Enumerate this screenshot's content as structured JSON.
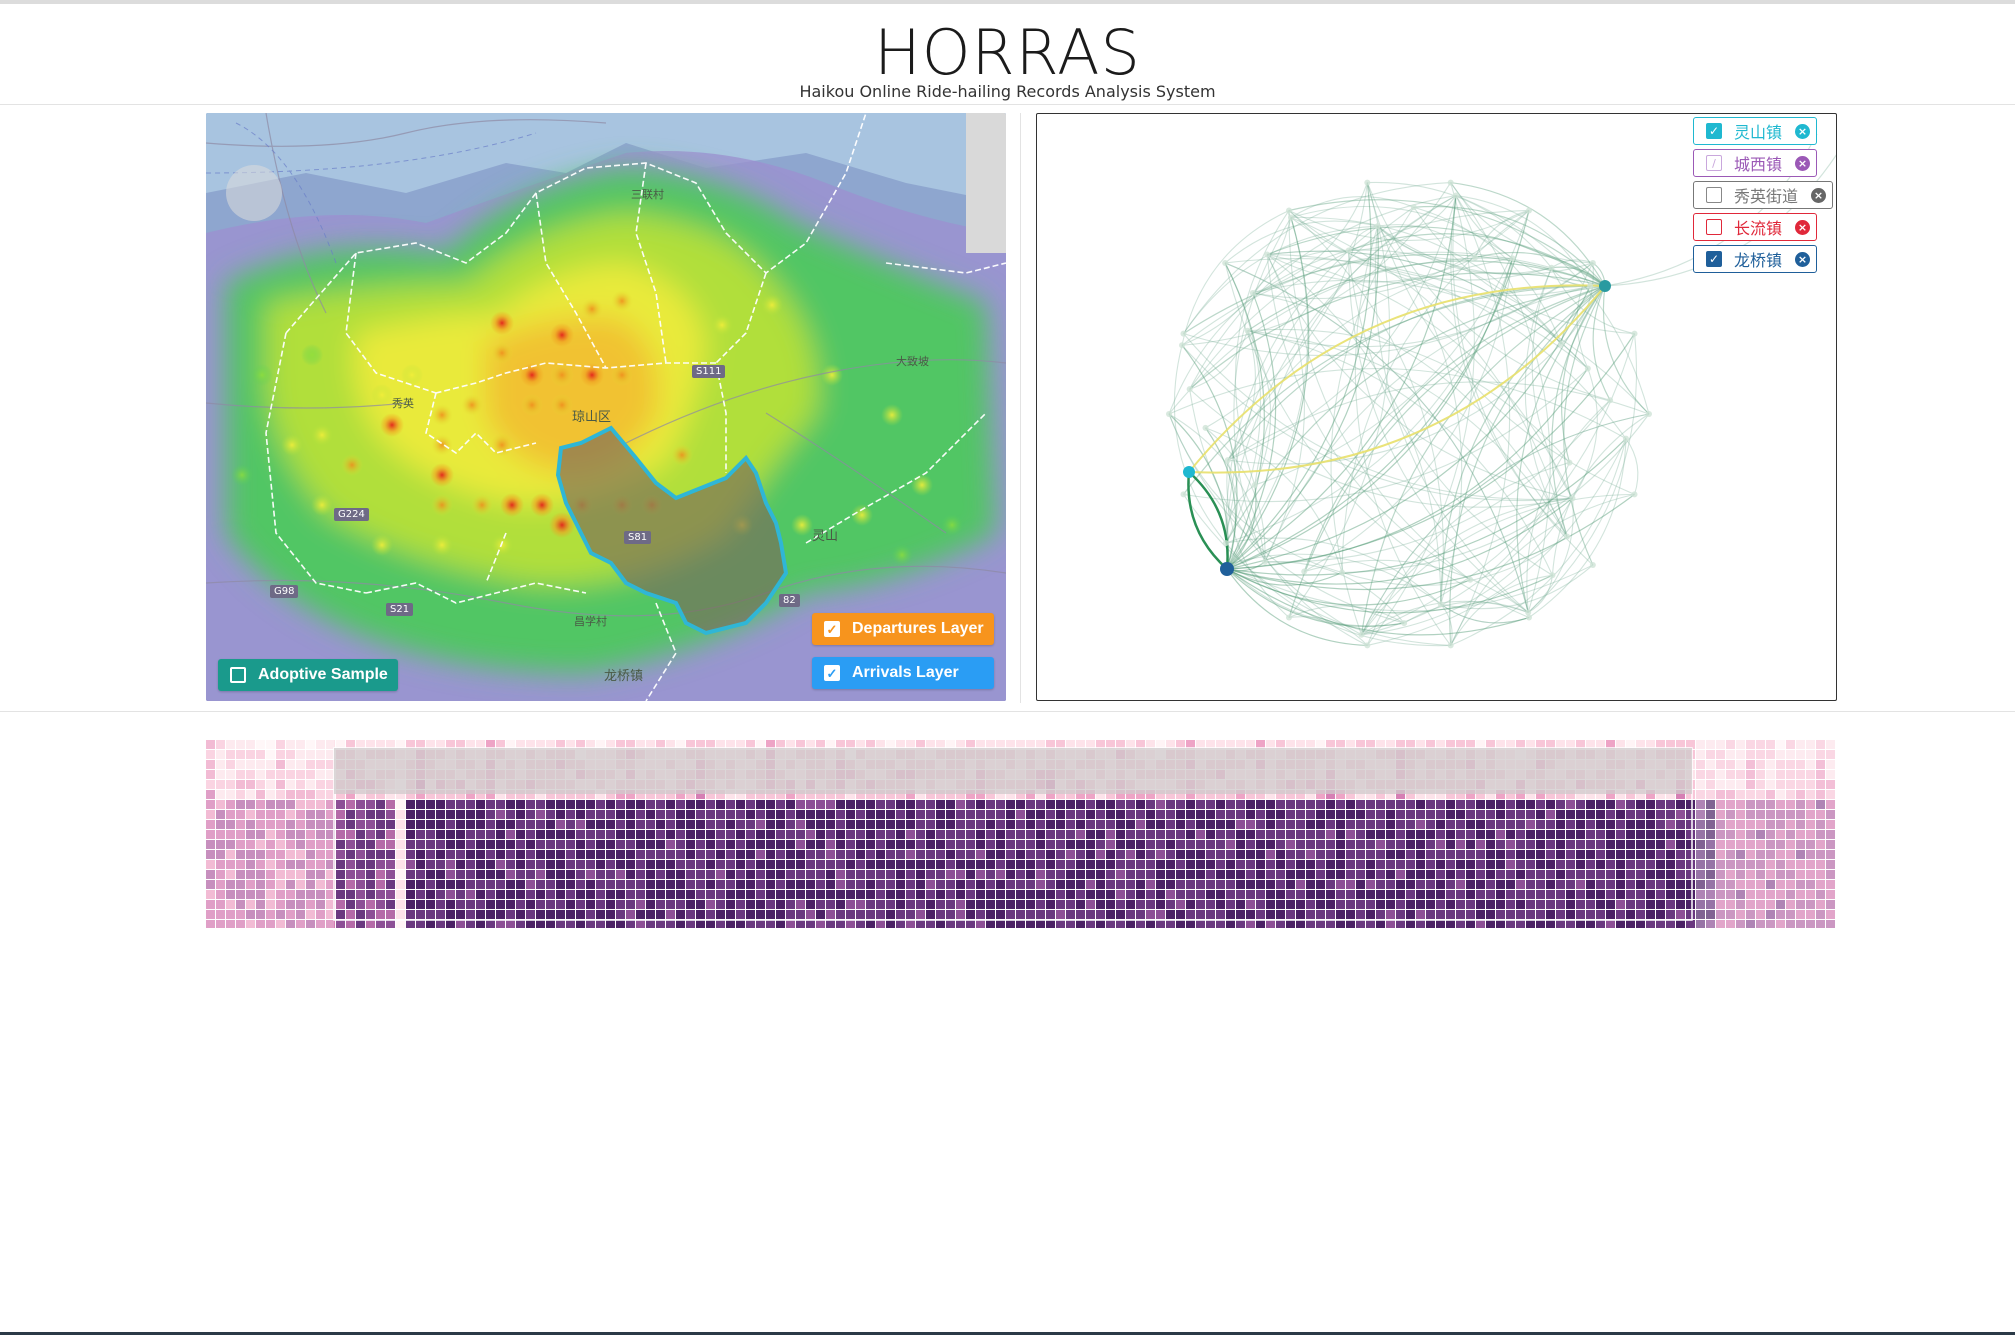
{
  "header": {
    "title": "HORRAS",
    "subtitle": "Haikou Online Ride-hailing Records Analysis System"
  },
  "map": {
    "place_labels": [
      "三联村",
      "龙桥镇",
      "灵山",
      "大致坡",
      "琼山区",
      "昌学村",
      "秀英"
    ],
    "road_badges": [
      "G224",
      "G98",
      "S21",
      "S111",
      "S81",
      "82"
    ],
    "buttons": {
      "adoptive_sample": {
        "label": "Adoptive Sample",
        "checked": false,
        "color": "#1a9a8c"
      },
      "departures_layer": {
        "label": "Departures Layer",
        "checked": true,
        "color": "#f7941d"
      },
      "arrivals_layer": {
        "label": "Arrivals Layer",
        "checked": true,
        "color": "#2a9df4"
      }
    },
    "highlight_color": "#2fb6d6"
  },
  "graph": {
    "legend": [
      {
        "label": "灵山镇",
        "checked": true,
        "color": "#1fb8d0",
        "style": "solid"
      },
      {
        "label": "城西镇",
        "checked": false,
        "color": "#9b59b6",
        "style": "partial"
      },
      {
        "label": "秀英街道",
        "checked": false,
        "color": "#666666",
        "style": "none"
      },
      {
        "label": "长流镇",
        "checked": false,
        "color": "#e0283a",
        "style": "none"
      },
      {
        "label": "龙桥镇",
        "checked": true,
        "color": "#1f5f9a",
        "style": "solid"
      }
    ]
  },
  "heatmap": {
    "color_low": "#fdeef2",
    "color_mid": "#e689b7",
    "color_high": "#4b2065"
  }
}
